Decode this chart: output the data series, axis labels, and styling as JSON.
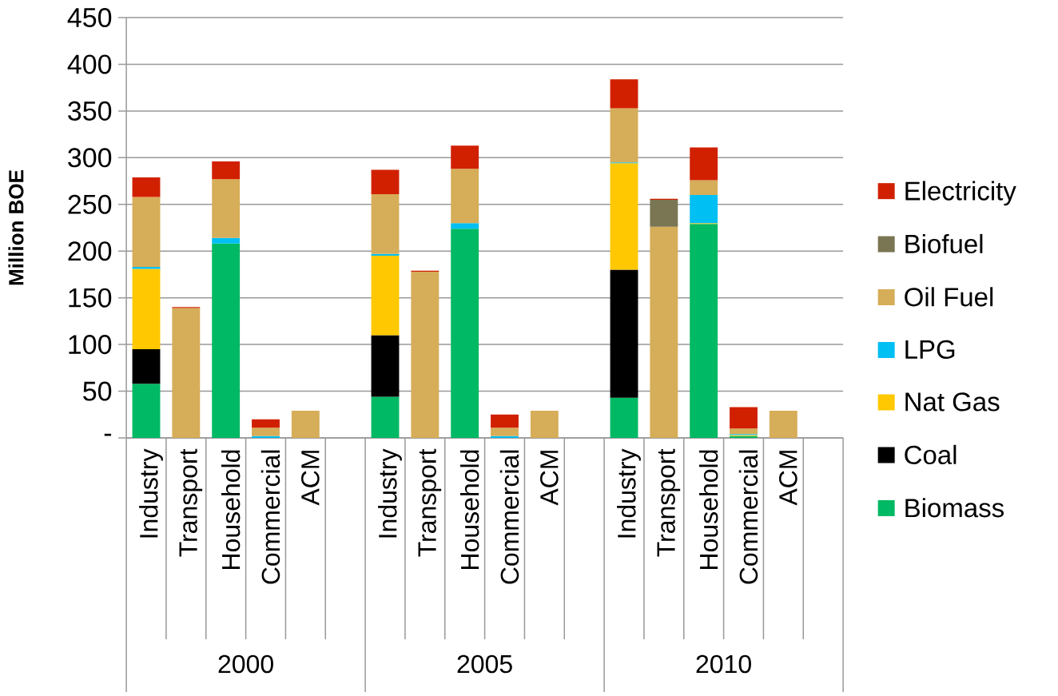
{
  "chart_data": {
    "type": "bar",
    "stacked": true,
    "ylabel": "Million BOE",
    "categories": [
      "Industry",
      "Transport",
      "Household",
      "Commercial",
      "ACM",
      null,
      "Industry",
      "Transport",
      "Household",
      "Commercial",
      "ACM",
      null,
      "Industry",
      "Transport",
      "Household",
      "Commercial",
      "ACM",
      null
    ],
    "annotations": [
      "2000",
      "2005",
      "2010"
    ],
    "series": [
      {
        "name": "Biomass",
        "color": "#00b964",
        "values": [
          58,
          null,
          208,
          null,
          null,
          null,
          44,
          null,
          224,
          null,
          null,
          null,
          43,
          null,
          229,
          2,
          null,
          null
        ]
      },
      {
        "name": "Coal",
        "color": "#000000",
        "values": [
          37,
          null,
          null,
          null,
          null,
          null,
          66,
          null,
          null,
          null,
          null,
          null,
          137,
          null,
          null,
          null,
          null,
          null
        ]
      },
      {
        "name": "Nat Gas",
        "color": "#ffc800",
        "values": [
          86,
          null,
          null,
          null,
          null,
          null,
          85,
          null,
          null,
          null,
          null,
          null,
          114,
          null,
          1,
          1,
          null,
          null
        ]
      },
      {
        "name": "LPG",
        "color": "#00bff3",
        "values": [
          2,
          null,
          6,
          2,
          null,
          null,
          2,
          null,
          6,
          2,
          null,
          null,
          1,
          null,
          30,
          1,
          null,
          null
        ]
      },
      {
        "name": "Oil Fuel",
        "color": "#d6ad58",
        "values": [
          75,
          139,
          63,
          9,
          29,
          null,
          64,
          178,
          58,
          9,
          29,
          null,
          58,
          226,
          16,
          6,
          29,
          null
        ]
      },
      {
        "name": "Biofuel",
        "color": "#7a7553",
        "values": [
          null,
          null,
          null,
          null,
          null,
          null,
          null,
          null,
          null,
          null,
          null,
          null,
          null,
          29,
          null,
          null,
          null,
          null
        ]
      },
      {
        "name": "Electricity",
        "color": "#d12000",
        "values": [
          21,
          1,
          19,
          9,
          null,
          null,
          26,
          1,
          25,
          14,
          null,
          null,
          31,
          1,
          35,
          23,
          null,
          null
        ]
      }
    ],
    "ylim": [
      0,
      450
    ],
    "yticks": [
      {
        "value": 0,
        "label": "-"
      },
      50,
      100,
      150,
      200,
      250,
      300,
      350,
      400,
      450
    ],
    "grid": "y",
    "legend": "right"
  }
}
